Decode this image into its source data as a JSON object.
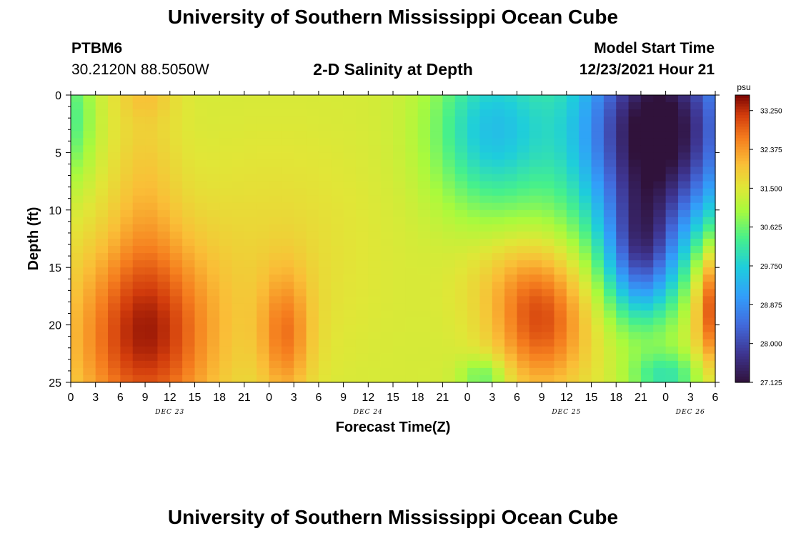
{
  "page": {
    "title": "University of Southern Mississippi Ocean Cube",
    "station_id": "PTBM6",
    "coordinates": "30.2120N  88.5050W",
    "subtitle": "2-D Salinity at Depth",
    "model_label": "Model Start Time",
    "model_time": "12/23/2021 Hour 21",
    "footer_title": "University of Southern Mississippi Ocean Cube"
  },
  "chart_data": {
    "type": "heatmap",
    "title": "2-D Salinity at Depth",
    "xlabel": "Forecast Time(Z)",
    "ylabel": "Depth (ft)",
    "x_range_hours_since_dec23_00z": [
      0,
      78
    ],
    "y_range_ft": [
      0,
      25
    ],
    "y_ticks": [
      "0",
      "5",
      "10",
      "15",
      "20",
      "25"
    ],
    "x_ticks": [
      "0",
      "3",
      "6",
      "9",
      "12",
      "15",
      "18",
      "21",
      "0",
      "3",
      "6",
      "9",
      "12",
      "15",
      "18",
      "21",
      "0",
      "3",
      "6",
      "9",
      "12",
      "15",
      "18",
      "21",
      "0",
      "3",
      "6"
    ],
    "date_labels": [
      {
        "label": "DEC 23",
        "hour": 12
      },
      {
        "label": "DEC 24",
        "hour": 36
      },
      {
        "label": "DEC 25",
        "hour": 60
      },
      {
        "label": "DEC 26",
        "hour": 75
      }
    ],
    "colorbar": {
      "unit": "psu",
      "min": 27.125,
      "max": 33.6,
      "tick_labels": [
        "33.250",
        "32.375",
        "31.500",
        "30.625",
        "29.750",
        "28.875",
        "28.000",
        "27.125"
      ],
      "tick_values": [
        33.25,
        32.375,
        31.5,
        30.625,
        29.75,
        28.875,
        28.0,
        27.125
      ]
    },
    "grid": {
      "hour_step": 1.5,
      "depth_step_ft": 0.625,
      "background_psu": 31.4,
      "features": [
        {
          "name": "dec23-bottom-high",
          "hour": 9,
          "depth": 21,
          "sh": 6,
          "sd": 6,
          "amp": 1.9
        },
        {
          "name": "dec23-upper-plume",
          "hour": 9,
          "depth": 8,
          "sh": 2.8,
          "sd": 7,
          "amp": 0.45
        },
        {
          "name": "dec23-surface-warm",
          "hour": 9,
          "depth": 0,
          "sh": 2.5,
          "sd": 1.5,
          "amp": 0.35
        },
        {
          "name": "dec24-bottom-high",
          "hour": 26,
          "depth": 21,
          "sh": 2.2,
          "sd": 4,
          "amp": 1.1
        },
        {
          "name": "dec24-mid-warm",
          "hour": 25,
          "depth": 14,
          "sh": 8,
          "sd": 7,
          "amp": 0.3
        },
        {
          "name": "dec25-bottom-high",
          "hour": 57,
          "depth": 20,
          "sh": 4,
          "sd": 4,
          "amp": 1.5
        },
        {
          "name": "dec25-mid-warm",
          "hour": 54,
          "depth": 16,
          "sh": 5,
          "sd": 3,
          "amp": 0.4
        },
        {
          "name": "dec26-bottom-high",
          "hour": 78,
          "depth": 18,
          "sh": 1.8,
          "sd": 4,
          "amp": 1.9
        },
        {
          "name": "dec24-surface-fresh",
          "hour": 51,
          "depth": 3,
          "sh": 5,
          "sd": 5,
          "amp": -1.8
        },
        {
          "name": "dec25-fresh-core",
          "hour": 71,
          "depth": 3,
          "sh": 7,
          "sd": 7,
          "amp": -4.6
        },
        {
          "name": "dec25-fresh-tongue",
          "hour": 69,
          "depth": 14,
          "sh": 3,
          "sd": 4,
          "amp": -2.4
        },
        {
          "name": "dec26-bottom-fresh",
          "hour": 72,
          "depth": 24.5,
          "sh": 3,
          "sd": 1.5,
          "amp": -1.2
        },
        {
          "name": "dec23-surface-fresh",
          "hour": 0,
          "depth": 2,
          "sh": 2,
          "sd": 4,
          "amp": -1.0
        },
        {
          "name": "dec24-bottom-fresh",
          "hour": 50,
          "depth": 24.5,
          "sh": 2,
          "sd": 1.2,
          "amp": -0.9
        }
      ]
    }
  }
}
